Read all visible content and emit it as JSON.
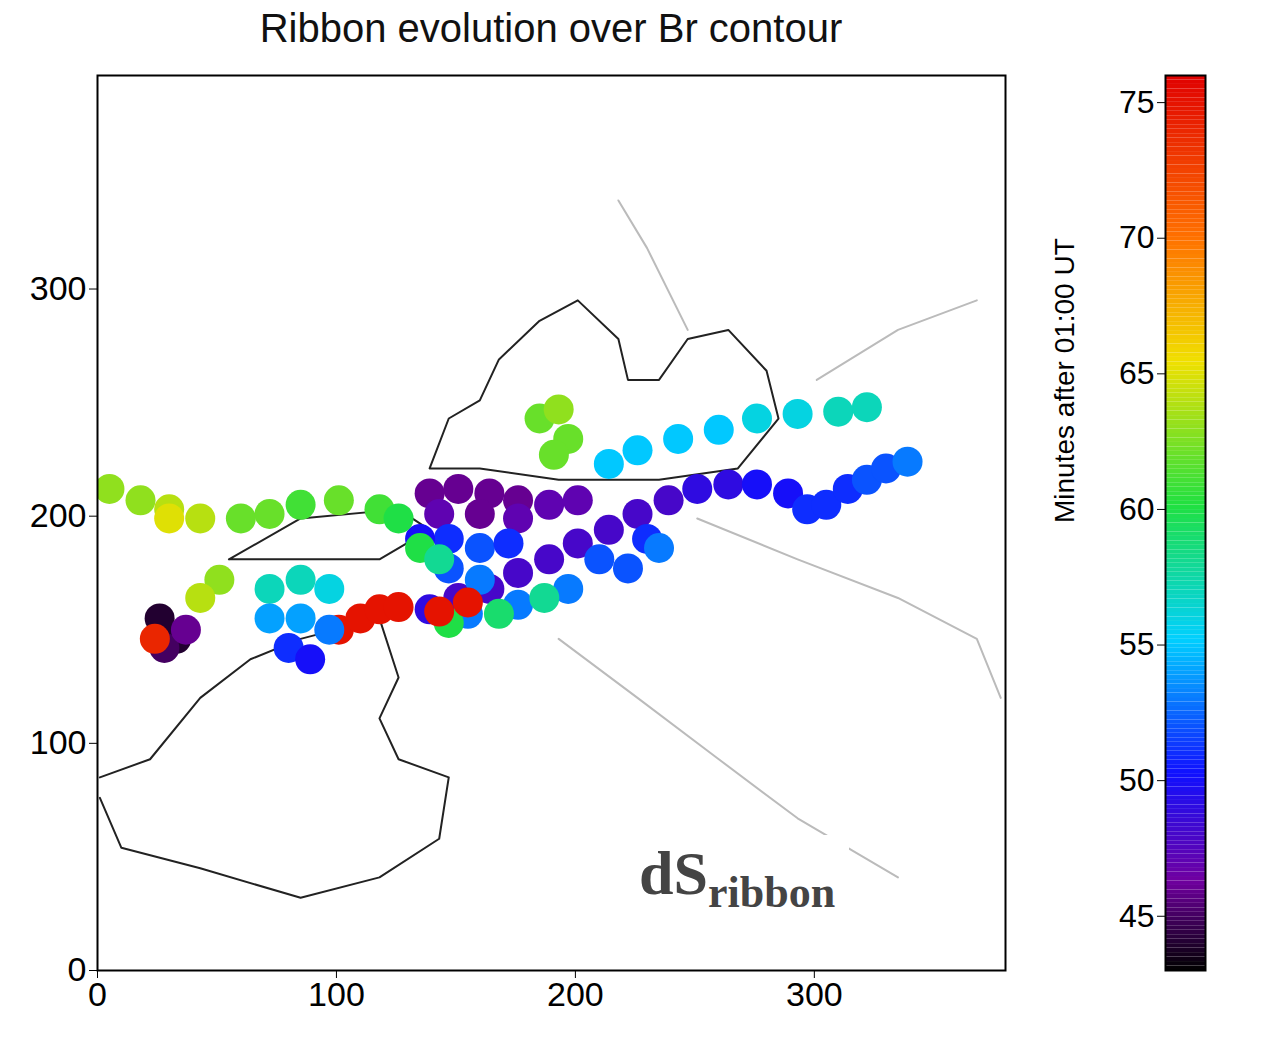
{
  "chart_data": {
    "type": "scatter",
    "title": "Ribbon evolution over Br contour",
    "xlim": [
      0,
      380
    ],
    "ylim": [
      0,
      394
    ],
    "xticks": [
      0,
      100,
      200,
      300
    ],
    "yticks": [
      0,
      100,
      200,
      300
    ],
    "ribbon": {
      "x": [
        139,
        151,
        164,
        176,
        189,
        201,
        214,
        226,
        239,
        251,
        264,
        276,
        289,
        297,
        305,
        314,
        322,
        330,
        339,
        139,
        151,
        164,
        176,
        189,
        143,
        160,
        176,
        201,
        147,
        160,
        172,
        147,
        160,
        210,
        222,
        230,
        135,
        235,
        155,
        176,
        197,
        147,
        168,
        187,
        143,
        155,
        101,
        110,
        118,
        126,
        226,
        243,
        260,
        276,
        293,
        310,
        322,
        214,
        185,
        193,
        197,
        191,
        72,
        85,
        97,
        72,
        85,
        97,
        80,
        89,
        5,
        18,
        30,
        43,
        60,
        72,
        85,
        101,
        118,
        126,
        135,
        51,
        43,
        30,
        143,
        26,
        33,
        28,
        37,
        24
      ],
      "y": [
        159,
        164,
        168,
        175,
        181,
        188,
        194,
        201,
        207,
        212,
        214,
        214,
        210,
        203,
        205,
        212,
        216,
        221,
        224,
        210,
        212,
        210,
        207,
        205,
        201,
        201,
        199,
        207,
        190,
        186,
        188,
        177,
        172,
        181,
        177,
        190,
        190,
        186,
        157,
        161,
        168,
        153,
        157,
        164,
        158,
        162,
        150,
        155,
        159,
        160,
        229,
        234,
        238,
        243,
        245,
        246,
        248,
        223,
        243,
        247,
        234,
        227,
        168,
        172,
        168,
        155,
        155,
        150,
        142,
        137,
        212,
        207,
        203,
        199,
        199,
        201,
        205,
        207,
        203,
        199,
        186,
        172,
        164,
        199,
        181,
        155,
        146,
        142,
        150,
        146
      ],
      "minutes": [
        49,
        48,
        48,
        48,
        48,
        48,
        48,
        48,
        48,
        49,
        49,
        50,
        50,
        51,
        51,
        51,
        52,
        52,
        53,
        46,
        46,
        46,
        46,
        47,
        47,
        46,
        47,
        47,
        51,
        52,
        51,
        52,
        53,
        52,
        52,
        51,
        50,
        53,
        53,
        53,
        53,
        60,
        59,
        58,
        75,
        75,
        75,
        75,
        75,
        75,
        55,
        55,
        55,
        56,
        56,
        57,
        57,
        55,
        62,
        63,
        62,
        62,
        57,
        57,
        56,
        54,
        54,
        53,
        51,
        50,
        63,
        63,
        64,
        64,
        62,
        62,
        61,
        62,
        61,
        60,
        60,
        63,
        64,
        65,
        58,
        44,
        44,
        45,
        46,
        74
      ]
    },
    "contours": [
      {
        "color": "#222222",
        "x": [
          139,
          147,
          160,
          168,
          185,
          201,
          218,
          222,
          235,
          247,
          264,
          280,
          285,
          268,
          235,
          193,
          160,
          139
        ],
        "y": [
          221,
          243,
          251,
          269,
          286,
          295,
          278,
          260,
          260,
          278,
          282,
          264,
          243,
          221,
          216,
          216,
          221,
          221
        ]
      },
      {
        "color": "#222222",
        "x": [
          1,
          22,
          43,
          64,
          85,
          118,
          126,
          118,
          126,
          147,
          143,
          118,
          85,
          43,
          10,
          1
        ],
        "y": [
          85,
          93,
          120,
          137,
          146,
          155,
          129,
          111,
          93,
          85,
          58,
          41,
          32,
          45,
          54,
          76
        ]
      },
      {
        "color": "#222222",
        "x": [
          55,
          85,
          126,
          139,
          118,
          85,
          55
        ],
        "y": [
          181,
          199,
          203,
          194,
          181,
          181,
          181
        ]
      },
      {
        "color": "#bbbbbb",
        "x": [
          251,
          293,
          335,
          368,
          378
        ],
        "y": [
          199,
          181,
          164,
          146,
          120
        ]
      },
      {
        "color": "#bbbbbb",
        "x": [
          193,
          226,
          260,
          293,
          335
        ],
        "y": [
          146,
          120,
          93,
          67,
          41
        ]
      },
      {
        "color": "#bbbbbb",
        "x": [
          301,
          335,
          368
        ],
        "y": [
          260,
          282,
          295
        ]
      },
      {
        "color": "#bbbbbb",
        "x": [
          218,
          230,
          247
        ],
        "y": [
          339,
          318,
          282
        ]
      }
    ],
    "colorbar": {
      "label": "Minutes after 01:00 UT",
      "range": [
        43,
        76
      ],
      "ticks": [
        45,
        50,
        55,
        60,
        65,
        70,
        75
      ]
    },
    "annotation": {
      "text": "dS",
      "subscript": "ribbon"
    }
  }
}
